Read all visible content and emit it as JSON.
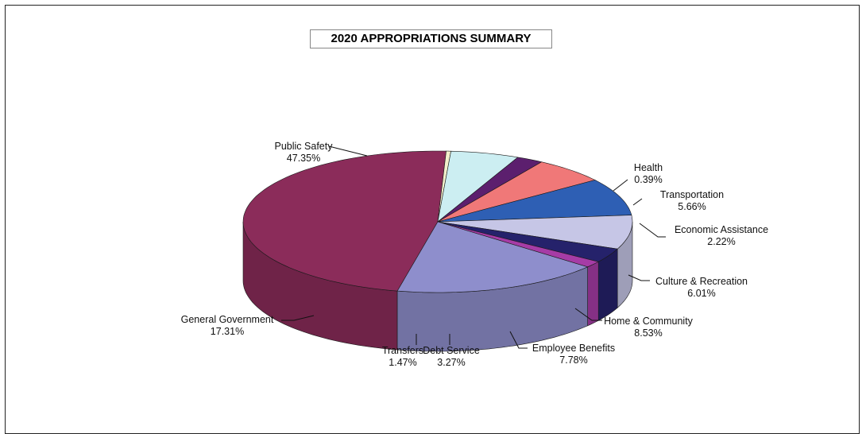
{
  "chart_data": {
    "type": "pie",
    "style": "3d",
    "title": "2020 APPROPRIATIONS SUMMARY",
    "slices": [
      {
        "name": "Public Safety",
        "value": 47.35,
        "pct_label": "47.35%",
        "color": "#8B2C5A"
      },
      {
        "name": "Health",
        "value": 0.39,
        "pct_label": "0.39%",
        "color": "#F2EFCB"
      },
      {
        "name": "Transportation",
        "value": 5.66,
        "pct_label": "5.66%",
        "color": "#CCEEF2"
      },
      {
        "name": "Economic Assistance",
        "value": 2.22,
        "pct_label": "2.22%",
        "color": "#5C1F6E"
      },
      {
        "name": "Culture & Recreation",
        "value": 6.01,
        "pct_label": "6.01%",
        "color": "#F07878"
      },
      {
        "name": "Home & Community",
        "value": 8.53,
        "pct_label": "8.53%",
        "color": "#2E5FB4"
      },
      {
        "name": "Employee Benefits",
        "value": 7.78,
        "pct_label": "7.78%",
        "color": "#C6C6E6"
      },
      {
        "name": "Debt Service",
        "value": 3.27,
        "pct_label": "3.27%",
        "color": "#25226B"
      },
      {
        "name": "Transfers",
        "value": 1.47,
        "pct_label": "1.47%",
        "color": "#A63CA6"
      },
      {
        "name": "General Government",
        "value": 17.31,
        "pct_label": "17.31%",
        "color": "#8E8ECC"
      }
    ]
  }
}
